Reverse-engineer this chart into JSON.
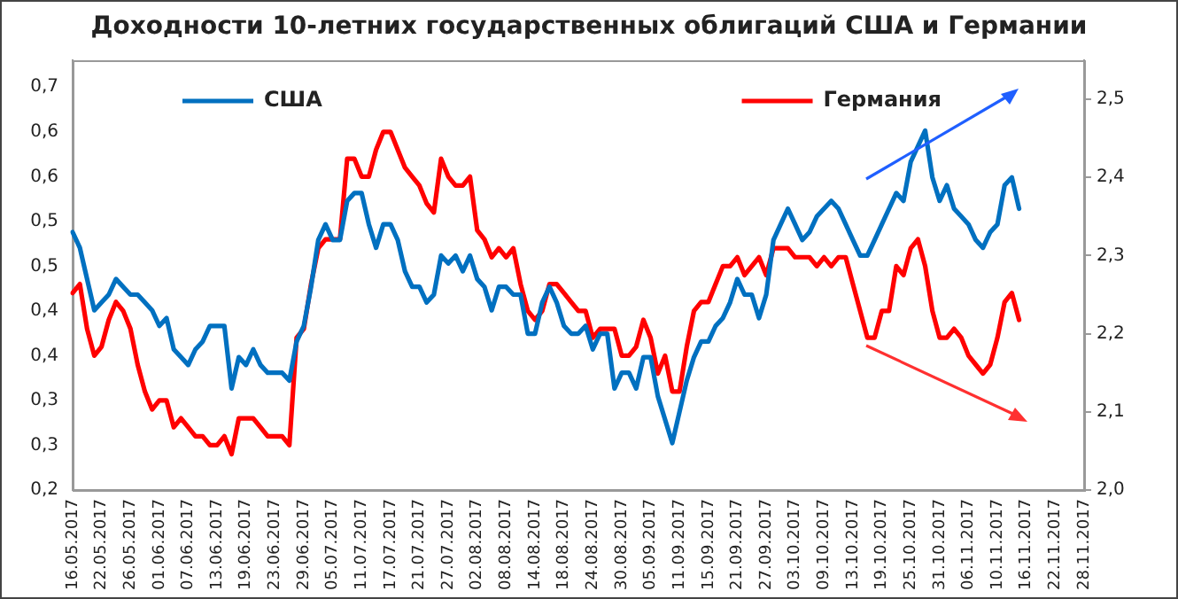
{
  "chart_data": {
    "type": "line",
    "title": "Доходности 10-летних государственных облигаций США и Германии",
    "categories": [
      "16.05.2017",
      null,
      null,
      null,
      "22.05.2017",
      null,
      null,
      null,
      "26.05.2017",
      null,
      null,
      null,
      "01.06.2017",
      null,
      null,
      null,
      "07.06.2017",
      null,
      null,
      null,
      "13.06.2017",
      null,
      null,
      null,
      "19.06.2017",
      null,
      null,
      null,
      "23.06.2017",
      null,
      null,
      null,
      "29.06.2017",
      null,
      null,
      null,
      "05.07.2017",
      null,
      null,
      null,
      "11.07.2017",
      null,
      null,
      null,
      "17.07.2017",
      null,
      null,
      null,
      "21.07.2017",
      null,
      null,
      null,
      "27.07.2017",
      null,
      null,
      null,
      "02.08.2017",
      null,
      null,
      null,
      "08.08.2017",
      null,
      null,
      null,
      "14.08.2017",
      null,
      null,
      null,
      "18.08.2017",
      null,
      null,
      null,
      "24.08.2017",
      null,
      null,
      null,
      "30.08.2017",
      null,
      null,
      null,
      "05.09.2017",
      null,
      null,
      null,
      "11.09.2017",
      null,
      null,
      null,
      "15.09.2017",
      null,
      null,
      null,
      "21.09.2017",
      null,
      null,
      null,
      "27.09.2017",
      null,
      null,
      null,
      "03.10.2017",
      null,
      null,
      null,
      "09.10.2017",
      null,
      null,
      null,
      "13.10.2017",
      null,
      null,
      null,
      "19.10.2017",
      null,
      null,
      null,
      "25.10.2017",
      null,
      null,
      null,
      "31.10.2017",
      null,
      null,
      null,
      "06.11.2017",
      null,
      null,
      null,
      "10.11.2017",
      null,
      null,
      null,
      "16.11.2017",
      null,
      null,
      null,
      "22.11.2017",
      null,
      null,
      null,
      "28.11.2017"
    ],
    "series": [
      {
        "name": "США",
        "color": "#0070c0",
        "axis": "y2",
        "values": [
          2.33,
          2.31,
          2.27,
          2.23,
          2.24,
          2.25,
          2.27,
          2.26,
          2.25,
          2.25,
          2.24,
          2.23,
          2.21,
          2.22,
          2.18,
          2.17,
          2.16,
          2.18,
          2.19,
          2.21,
          2.21,
          2.21,
          2.13,
          2.17,
          2.16,
          2.18,
          2.16,
          2.15,
          2.15,
          2.15,
          2.14,
          2.19,
          2.21,
          2.26,
          2.32,
          2.34,
          2.32,
          2.32,
          2.37,
          2.38,
          2.38,
          2.34,
          2.31,
          2.34,
          2.34,
          2.32,
          2.28,
          2.26,
          2.26,
          2.24,
          2.25,
          2.3,
          2.29,
          2.3,
          2.28,
          2.3,
          2.27,
          2.26,
          2.23,
          2.26,
          2.26,
          2.25,
          2.25,
          2.2,
          2.2,
          2.24,
          2.26,
          2.24,
          2.21,
          2.2,
          2.2,
          2.21,
          2.18,
          2.2,
          2.2,
          2.13,
          2.15,
          2.15,
          2.13,
          2.17,
          2.17,
          2.12,
          2.09,
          2.06,
          2.1,
          2.14,
          2.17,
          2.19,
          2.19,
          2.21,
          2.22,
          2.24,
          2.27,
          2.25,
          2.25,
          2.22,
          2.25,
          2.32,
          2.34,
          2.36,
          2.34,
          2.32,
          2.33,
          2.35,
          2.36,
          2.37,
          2.36,
          2.34,
          2.32,
          2.3,
          2.3,
          2.32,
          2.34,
          2.36,
          2.38,
          2.37,
          2.42,
          2.44,
          2.46,
          2.4,
          2.37,
          2.39,
          2.36,
          2.35,
          2.34,
          2.32,
          2.31,
          2.33,
          2.34,
          2.39,
          2.4,
          2.36,
          null,
          null,
          null,
          null,
          null,
          null,
          null,
          null,
          null
        ]
      },
      {
        "name": "Германия",
        "color": "#ff0000",
        "axis": "y",
        "values": [
          0.42,
          0.43,
          0.38,
          0.35,
          0.36,
          0.39,
          0.41,
          0.4,
          0.38,
          0.34,
          0.31,
          0.29,
          0.3,
          0.3,
          0.27,
          0.28,
          0.27,
          0.26,
          0.26,
          0.25,
          0.25,
          0.26,
          0.24,
          0.28,
          0.28,
          0.28,
          0.27,
          0.26,
          0.26,
          0.26,
          0.25,
          0.37,
          0.38,
          0.43,
          0.47,
          0.48,
          0.48,
          0.48,
          0.57,
          0.57,
          0.55,
          0.55,
          0.58,
          0.6,
          0.6,
          0.58,
          0.56,
          0.55,
          0.54,
          0.52,
          0.51,
          0.57,
          0.55,
          0.54,
          0.54,
          0.55,
          0.49,
          0.48,
          0.46,
          0.47,
          0.46,
          0.47,
          0.43,
          0.4,
          0.39,
          0.4,
          0.43,
          0.43,
          0.42,
          0.41,
          0.4,
          0.4,
          0.37,
          0.38,
          0.38,
          0.38,
          0.35,
          0.35,
          0.36,
          0.39,
          0.37,
          0.33,
          0.35,
          0.31,
          0.31,
          0.36,
          0.4,
          0.41,
          0.41,
          0.43,
          0.45,
          0.45,
          0.46,
          0.44,
          0.45,
          0.46,
          0.44,
          0.47,
          0.47,
          0.47,
          0.46,
          0.46,
          0.46,
          0.45,
          0.46,
          0.45,
          0.46,
          0.46,
          0.43,
          0.4,
          0.37,
          0.37,
          0.4,
          0.4,
          0.45,
          0.44,
          0.47,
          0.48,
          0.45,
          0.4,
          0.37,
          0.37,
          0.38,
          0.37,
          0.35,
          0.34,
          0.33,
          0.34,
          0.37,
          0.41,
          0.42,
          0.39,
          null,
          null,
          null,
          null,
          null,
          null,
          null,
          null,
          null
        ]
      }
    ],
    "ylim": [
      0.2,
      0.68
    ],
    "yticks": [
      {
        "value": 0.2,
        "label": "0,2"
      },
      {
        "value": 0.25,
        "label": "0,3"
      },
      {
        "value": 0.3,
        "label": "0,3"
      },
      {
        "value": 0.35,
        "label": "0,4"
      },
      {
        "value": 0.4,
        "label": "0,4"
      },
      {
        "value": 0.45,
        "label": "0,5"
      },
      {
        "value": 0.5,
        "label": "0,5"
      },
      {
        "value": 0.55,
        "label": "0,6"
      },
      {
        "value": 0.6,
        "label": "0,6"
      },
      {
        "value": 0.65,
        "label": "0,7"
      }
    ],
    "y2lim": [
      2.0,
      2.55
    ],
    "y2ticks": [
      {
        "value": 2.0,
        "label": "2,0"
      },
      {
        "value": 2.1,
        "label": "2,1"
      },
      {
        "value": 2.2,
        "label": "2,2"
      },
      {
        "value": 2.3,
        "label": "2,3"
      },
      {
        "value": 2.4,
        "label": "2,4"
      },
      {
        "value": 2.5,
        "label": "2,5"
      }
    ],
    "legend": "top",
    "grid": false,
    "marker": "none",
    "line_style": "solid"
  }
}
